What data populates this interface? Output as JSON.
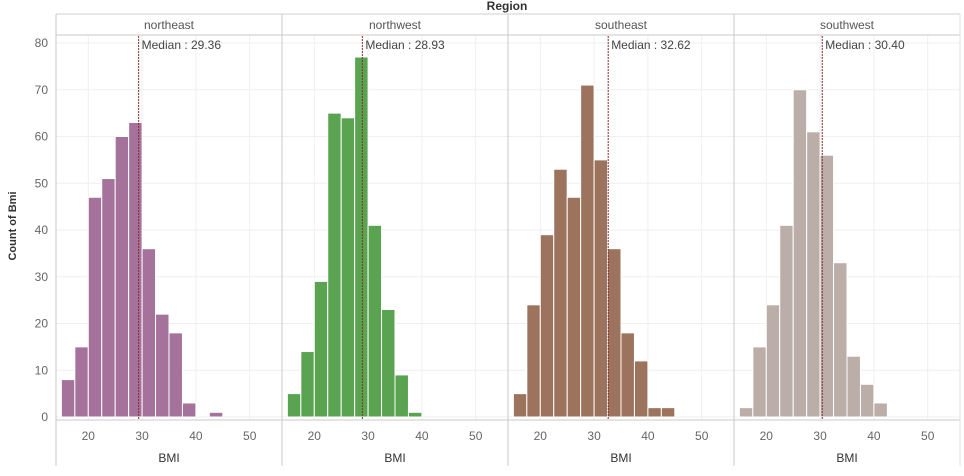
{
  "chart_data": {
    "type": "bar",
    "title": "Region",
    "xlabel": "BMI",
    "ylabel": "Count of Bmi",
    "ylim": [
      0,
      82
    ],
    "yticks": [
      0,
      10,
      20,
      30,
      40,
      50,
      60,
      70,
      80
    ],
    "xlim": [
      14,
      56
    ],
    "xticks": [
      20,
      30,
      40,
      50
    ],
    "bin_width": 2.5,
    "grid": true,
    "panels": [
      {
        "name": "northeast",
        "color": "#a4729b",
        "median": 29.36,
        "median_label": "Median : 29.36",
        "bins": [
          {
            "x": 15,
            "count": 8
          },
          {
            "x": 17.5,
            "count": 15
          },
          {
            "x": 20,
            "count": 47
          },
          {
            "x": 22.5,
            "count": 51
          },
          {
            "x": 25,
            "count": 60
          },
          {
            "x": 27.5,
            "count": 63
          },
          {
            "x": 30,
            "count": 36
          },
          {
            "x": 32.5,
            "count": 22
          },
          {
            "x": 35,
            "count": 18
          },
          {
            "x": 37.5,
            "count": 3
          },
          {
            "x": 40,
            "count": 0
          },
          {
            "x": 42.5,
            "count": 1
          }
        ]
      },
      {
        "name": "northwest",
        "color": "#5aa350",
        "median": 28.93,
        "median_label": "Median : 28.93",
        "bins": [
          {
            "x": 15,
            "count": 5
          },
          {
            "x": 17.5,
            "count": 14
          },
          {
            "x": 20,
            "count": 29
          },
          {
            "x": 22.5,
            "count": 65
          },
          {
            "x": 25,
            "count": 64
          },
          {
            "x": 27.5,
            "count": 77
          },
          {
            "x": 30,
            "count": 41
          },
          {
            "x": 32.5,
            "count": 23
          },
          {
            "x": 35,
            "count": 9
          },
          {
            "x": 37.5,
            "count": 1
          }
        ]
      },
      {
        "name": "southeast",
        "color": "#9c735d",
        "median": 32.62,
        "median_label": "Median : 32.62",
        "bins": [
          {
            "x": 15,
            "count": 5
          },
          {
            "x": 17.5,
            "count": 24
          },
          {
            "x": 20,
            "count": 39
          },
          {
            "x": 22.5,
            "count": 53
          },
          {
            "x": 25,
            "count": 47
          },
          {
            "x": 27.5,
            "count": 71
          },
          {
            "x": 30,
            "count": 55
          },
          {
            "x": 32.5,
            "count": 36
          },
          {
            "x": 35,
            "count": 18
          },
          {
            "x": 37.5,
            "count": 12
          },
          {
            "x": 40,
            "count": 2
          },
          {
            "x": 42.5,
            "count": 2
          }
        ]
      },
      {
        "name": "southwest",
        "color": "#bbaea9",
        "median": 30.4,
        "median_label": "Median : 30.40",
        "bins": [
          {
            "x": 15,
            "count": 2
          },
          {
            "x": 17.5,
            "count": 15
          },
          {
            "x": 20,
            "count": 24
          },
          {
            "x": 22.5,
            "count": 41
          },
          {
            "x": 25,
            "count": 70
          },
          {
            "x": 27.5,
            "count": 61
          },
          {
            "x": 30,
            "count": 56
          },
          {
            "x": 32.5,
            "count": 33
          },
          {
            "x": 35,
            "count": 13
          },
          {
            "x": 37.5,
            "count": 7
          },
          {
            "x": 40,
            "count": 3
          }
        ]
      }
    ]
  }
}
